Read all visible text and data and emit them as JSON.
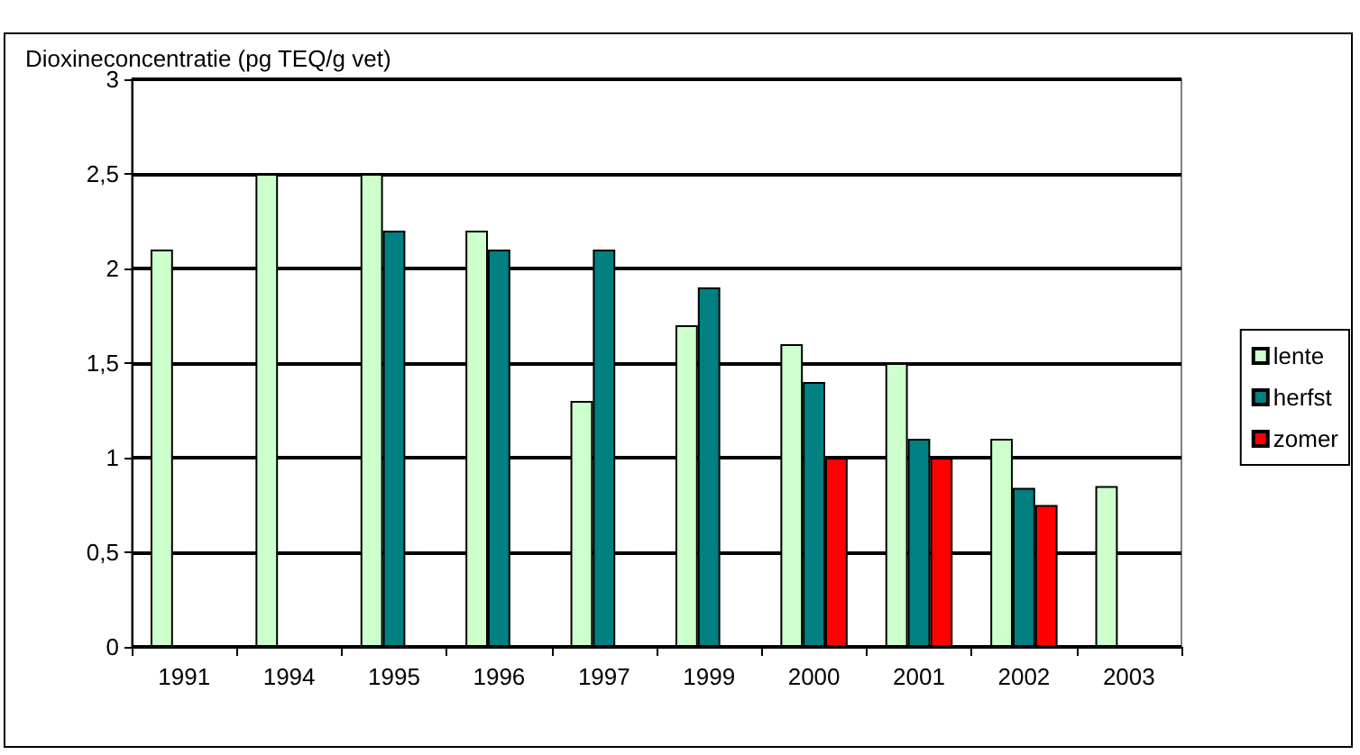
{
  "chart_data": {
    "type": "bar",
    "ylabel": "Dioxineconcentratie (pg TEQ/g vet)",
    "categories": [
      "1991",
      "1994",
      "1995",
      "1996",
      "1997",
      "1999",
      "2000",
      "2001",
      "2002",
      "2003"
    ],
    "series": [
      {
        "name": "lente",
        "color": "#ccffcc",
        "values": [
          2.1,
          2.5,
          2.5,
          2.2,
          1.3,
          1.7,
          1.6,
          1.5,
          1.1,
          0.85
        ]
      },
      {
        "name": "herfst",
        "color": "#008080",
        "values": [
          null,
          null,
          2.2,
          2.1,
          2.1,
          1.9,
          1.4,
          1.1,
          0.84,
          null
        ]
      },
      {
        "name": "zomer",
        "color": "#ff0000",
        "values": [
          null,
          null,
          null,
          null,
          null,
          null,
          1.0,
          1.0,
          0.75,
          null
        ]
      }
    ],
    "ylim": [
      0,
      3
    ],
    "yticks": [
      0,
      {
        "value": 0.5,
        "label": "0,5"
      },
      1,
      {
        "value": 1.5,
        "label": "1,5"
      },
      2,
      {
        "value": 2.5,
        "label": "2,5"
      },
      3
    ],
    "grid": "y",
    "legend": "right"
  }
}
